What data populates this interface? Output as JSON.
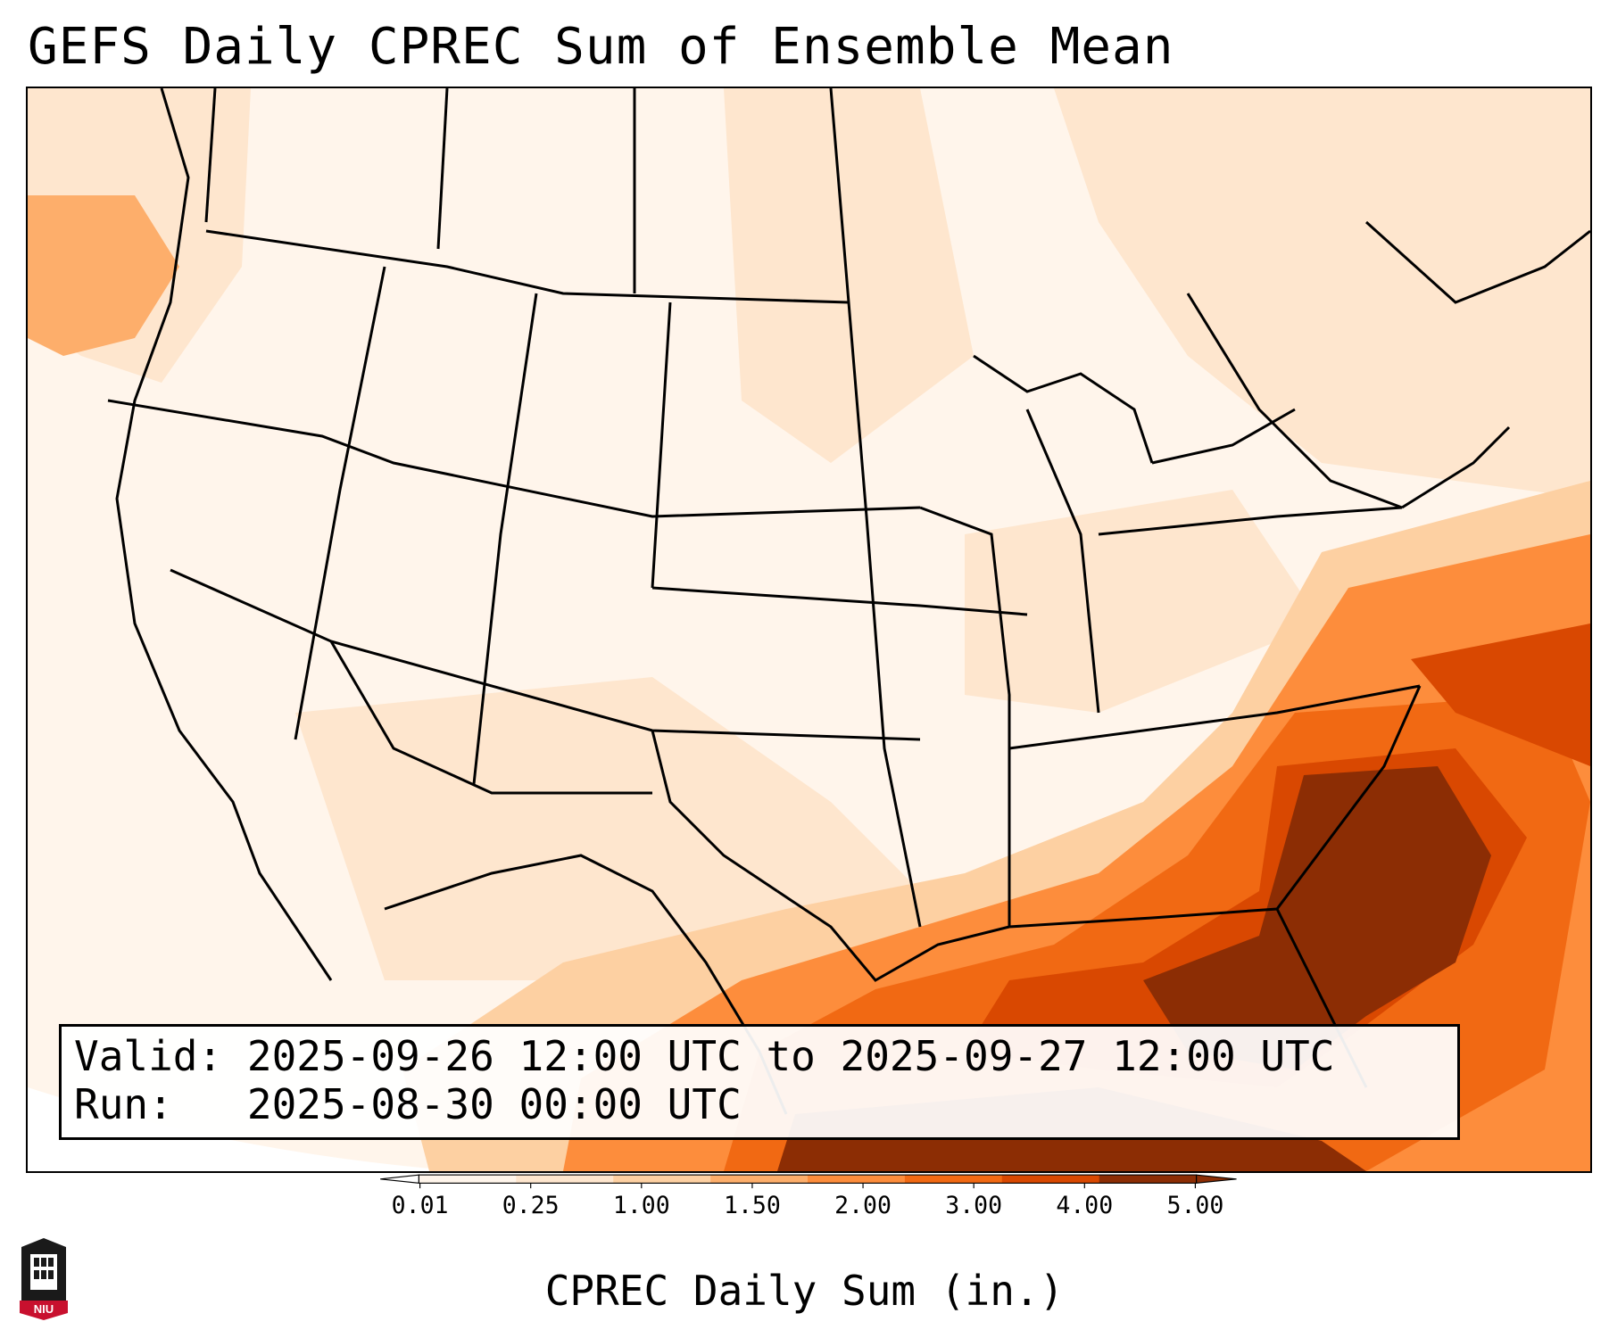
{
  "title": "GEFS Daily CPREC Sum of Ensemble Mean",
  "info": {
    "valid_label": "Valid:",
    "valid_value": "2025-09-26 12:00 UTC to 2025-09-27 12:00 UTC",
    "run_label": "Run:",
    "run_value": "2025-08-30 00:00 UTC"
  },
  "colorbar": {
    "title": "CPREC Daily Sum (in.)",
    "ticks": [
      "0.01",
      "0.25",
      "1.00",
      "1.50",
      "2.00",
      "3.00",
      "4.00",
      "5.00"
    ],
    "colors": [
      "#fff5eb",
      "#fee6ce",
      "#fdd0a2",
      "#fdae6b",
      "#fd8d3c",
      "#f16913",
      "#d94801",
      "#8c2d04"
    ],
    "under_color": "#ffffff",
    "over_color": "#8c2d04"
  },
  "logo": {
    "text": "NIU",
    "colors": {
      "primary": "#c8102e",
      "dark": "#1a1a1a"
    }
  },
  "map": {
    "region": "CONUS",
    "field": "CPREC"
  }
}
